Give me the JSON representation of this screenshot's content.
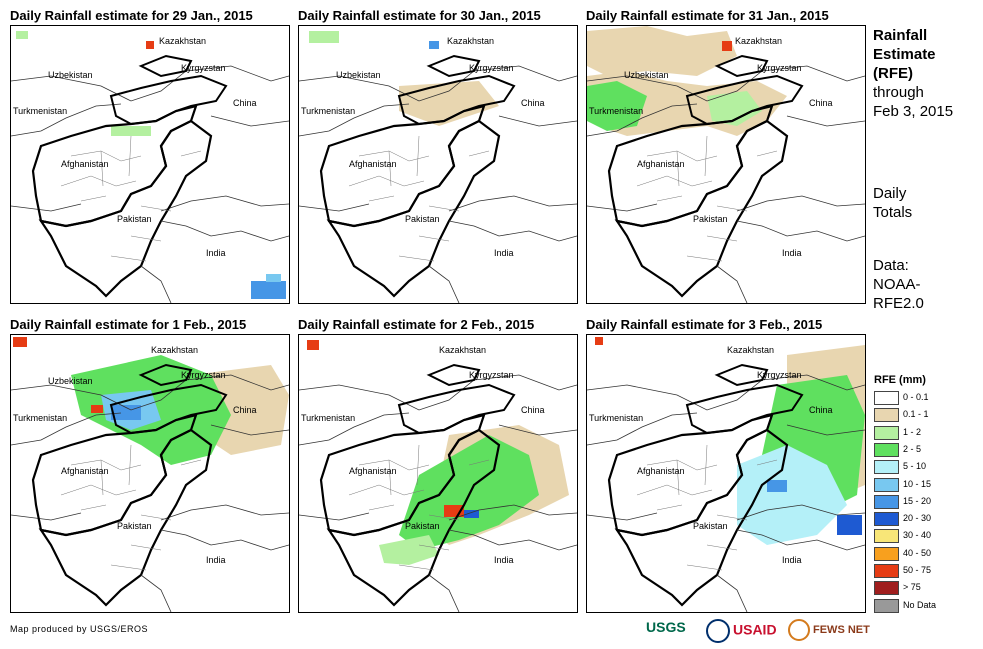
{
  "panels": [
    {
      "title": "Daily Rainfall estimate for 29 Jan., 2015"
    },
    {
      "title": "Daily Rainfall estimate for 30 Jan., 2015"
    },
    {
      "title": "Daily Rainfall estimate for 31 Jan., 2015"
    },
    {
      "title": "Daily Rainfall estimate for 1 Feb., 2015"
    },
    {
      "title": "Daily Rainfall estimate for 2 Feb., 2015"
    },
    {
      "title": "Daily Rainfall estimate for 3 Feb., 2015"
    }
  ],
  "countries": {
    "kazakhstan": "Kazakhstan",
    "uzbekistan": "Uzbekistan",
    "kyrgyzstan": "Kyrgyzstan",
    "turkmenistan": "Turkmenistan",
    "china": "China",
    "afghanistan": "Afghanistan",
    "pakistan": "Pakistan",
    "india": "India"
  },
  "side": {
    "title_line1": "Rainfall",
    "title_line2": "Estimate",
    "title_line3": "(RFE)",
    "through": "through",
    "date": "Feb 3, 2015",
    "daily": "Daily",
    "totals": "Totals",
    "data_label": "Data:",
    "data_source1": "NOAA-",
    "data_source2": "RFE2.0"
  },
  "legend": {
    "title": "RFE (mm)",
    "items": [
      {
        "label": "0 - 0.1",
        "color": "#ffffff"
      },
      {
        "label": "0.1 - 1",
        "color": "#e8d6b0"
      },
      {
        "label": "1 - 2",
        "color": "#b4f0a0"
      },
      {
        "label": "2 - 5",
        "color": "#5fe05f"
      },
      {
        "label": "5 - 10",
        "color": "#b4f0f8"
      },
      {
        "label": "10 - 15",
        "color": "#78c8f0"
      },
      {
        "label": "15 - 20",
        "color": "#4696e6"
      },
      {
        "label": "20 - 30",
        "color": "#1e5ad2"
      },
      {
        "label": "30 - 40",
        "color": "#f8e678"
      },
      {
        "label": "40 - 50",
        "color": "#f8a01e"
      },
      {
        "label": "50 - 75",
        "color": "#e63c14"
      },
      {
        "label": "> 75",
        "color": "#a01e1e"
      },
      {
        "label": "No Data",
        "color": "#999999"
      }
    ]
  },
  "footer": {
    "credit": "Map produced by USGS/EROS",
    "usgs": "USGS",
    "usaid": "USAID",
    "fewsnet": "FEWS NET"
  }
}
